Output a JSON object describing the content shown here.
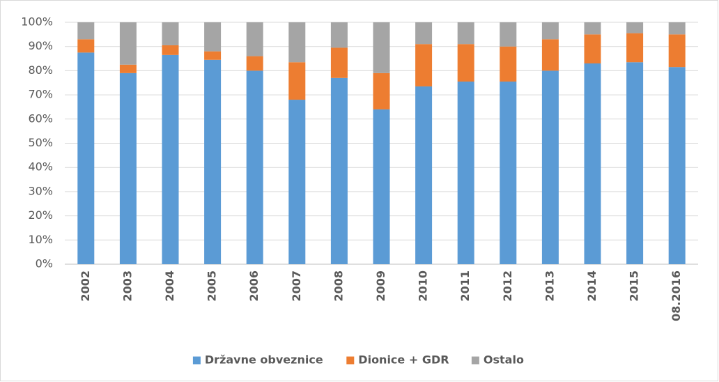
{
  "chart_data": {
    "type": "stacked_bar",
    "categories": [
      "2002",
      "2003",
      "2004",
      "2005",
      "2006",
      "2007",
      "2008",
      "2009",
      "2010",
      "2011",
      "2012",
      "2013",
      "2014",
      "2015",
      "08.2016"
    ],
    "series": [
      {
        "name": "Državne obveznice",
        "color": "#5b9bd5",
        "values": [
          87.5,
          79,
          86.5,
          84.5,
          80,
          68,
          77,
          64,
          73.5,
          75.5,
          75.5,
          80,
          83,
          83.5,
          81.5
        ]
      },
      {
        "name": "Dionice + GDR",
        "color": "#ed7d31",
        "values": [
          5.5,
          3.5,
          4,
          3.5,
          6,
          15.5,
          12.5,
          15,
          17.5,
          15.5,
          14.5,
          13,
          12,
          12,
          13.5
        ]
      },
      {
        "name": "Ostalo",
        "color": "#a5a5a5",
        "values": [
          7,
          17.5,
          9.5,
          12,
          14,
          16.5,
          10.5,
          21,
          9,
          9,
          10,
          7,
          5,
          4.5,
          5
        ]
      }
    ],
    "ylim": [
      0,
      100
    ],
    "yticks": [
      {
        "value": 0,
        "label": "0%"
      },
      {
        "value": 10,
        "label": "10%"
      },
      {
        "value": 20,
        "label": "20%"
      },
      {
        "value": 30,
        "label": "30%"
      },
      {
        "value": 40,
        "label": "40%"
      },
      {
        "value": 50,
        "label": "50%"
      },
      {
        "value": 60,
        "label": "60%"
      },
      {
        "value": 70,
        "label": "70%"
      },
      {
        "value": 80,
        "label": "80%"
      },
      {
        "value": 90,
        "label": "90%"
      },
      {
        "value": 100,
        "label": "100%"
      }
    ],
    "grid": true,
    "legend": "bottom"
  }
}
